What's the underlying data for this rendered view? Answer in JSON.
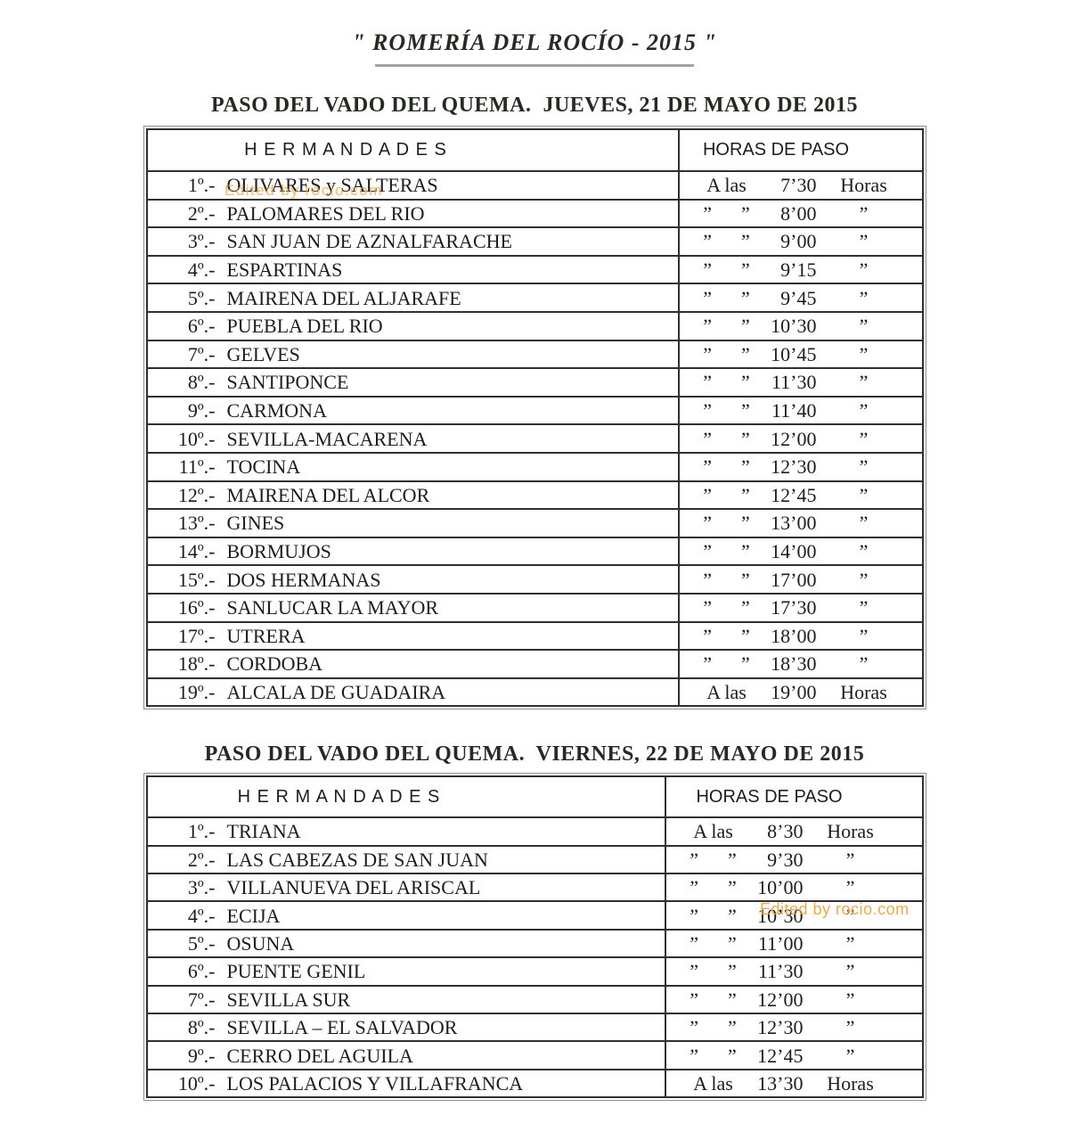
{
  "title": "\" ROMERÍA DEL ROCÍO - 2015 \"",
  "colors": {
    "heading_dark": "#242b22",
    "body_text": "#1d1d1d",
    "table_border": "#2f2f2f",
    "watermark_orange": "#f0a232"
  },
  "watermarks": [
    {
      "text": "Edited by rocio.com"
    },
    {
      "text": "Edited by rocio.com"
    }
  ],
  "tables": [
    {
      "heading": "PASO DEL VADO DEL QUEMA.  JUEVES, 21 DE MAYO DE 2015",
      "col_hermandades": "H E R M A N D A D E S",
      "col_horas": "HORAS DE PASO",
      "rows": [
        {
          "n": "1º.-",
          "name": "OLIVARES y SALTERAS",
          "l": "A las",
          "t": "7’30",
          "r": "Horas"
        },
        {
          "n": "2º.-",
          "name": "PALOMARES DEL RIO",
          "l": "”      ”",
          "t": "8’00",
          "r": "”"
        },
        {
          "n": "3º.-",
          "name": "SAN JUAN DE AZNALFARACHE",
          "l": "”      ”",
          "t": "9’00",
          "r": "”"
        },
        {
          "n": "4º.-",
          "name": "ESPARTINAS",
          "l": "”      ”",
          "t": "9’15",
          "r": "”"
        },
        {
          "n": "5º.-",
          "name": "MAIRENA DEL ALJARAFE",
          "l": "”      ”",
          "t": "9’45",
          "r": "”"
        },
        {
          "n": "6º.-",
          "name": "PUEBLA DEL RIO",
          "l": "”      ”",
          "t": "10’30",
          "r": "”"
        },
        {
          "n": "7º.-",
          "name": "GELVES",
          "l": "”      ”",
          "t": "10’45",
          "r": "”"
        },
        {
          "n": "8º.-",
          "name": "SANTIPONCE",
          "l": "”      ”",
          "t": "11’30",
          "r": "”"
        },
        {
          "n": "9º.-",
          "name": "CARMONA",
          "l": "”      ”",
          "t": "11’40",
          "r": "”"
        },
        {
          "n": "10º.-",
          "name": "SEVILLA-MACARENA",
          "l": "”      ”",
          "t": "12’00",
          "r": "”"
        },
        {
          "n": "11º.-",
          "name": "TOCINA",
          "l": "”      ”",
          "t": "12’30",
          "r": "”"
        },
        {
          "n": "12º.-",
          "name": "MAIRENA DEL ALCOR",
          "l": "”      ”",
          "t": "12’45",
          "r": "”"
        },
        {
          "n": "13º.-",
          "name": "GINES",
          "l": "”      ”",
          "t": "13’00",
          "r": "”"
        },
        {
          "n": "14º.-",
          "name": "BORMUJOS",
          "l": "”      ”",
          "t": "14’00",
          "r": "”"
        },
        {
          "n": "15º.-",
          "name": "DOS HERMANAS",
          "l": "”      ”",
          "t": "17’00",
          "r": "”"
        },
        {
          "n": "16º.-",
          "name": "SANLUCAR LA MAYOR",
          "l": "”      ”",
          "t": "17’30",
          "r": "”"
        },
        {
          "n": "17º.-",
          "name": "UTRERA",
          "l": "”      ”",
          "t": "18’00",
          "r": "”"
        },
        {
          "n": "18º.-",
          "name": "CORDOBA",
          "l": "”      ”",
          "t": "18’30",
          "r": "”"
        },
        {
          "n": "19º.-",
          "name": "ALCALA DE GUADAIRA",
          "l": "A las",
          "t": "19’00",
          "r": "Horas"
        }
      ]
    },
    {
      "heading": "PASO DEL VADO DEL QUEMA.  VIERNES, 22 DE MAYO DE 2015",
      "col_hermandades": "H E R M A N D A D E S",
      "col_horas": "HORAS DE PASO",
      "rows": [
        {
          "n": "1º.-",
          "name": "TRIANA",
          "l": "A las",
          "t": "8’30",
          "r": "Horas"
        },
        {
          "n": "2º.-",
          "name": "LAS CABEZAS DE SAN JUAN",
          "l": "”      ”",
          "t": "9’30",
          "r": "”"
        },
        {
          "n": "3º.-",
          "name": "VILLANUEVA DEL ARISCAL",
          "l": "”      ”",
          "t": "10’00",
          "r": "”"
        },
        {
          "n": "4º.-",
          "name": "ECIJA",
          "l": "”      ”",
          "t": "10’30",
          "r": "”"
        },
        {
          "n": "5º.-",
          "name": "OSUNA",
          "l": "”      ”",
          "t": "11’00",
          "r": "”"
        },
        {
          "n": "6º.-",
          "name": "PUENTE GENIL",
          "l": "”      ”",
          "t": "11’30",
          "r": "”"
        },
        {
          "n": "7º.-",
          "name": "SEVILLA SUR",
          "l": "”      ”",
          "t": "12’00",
          "r": "”"
        },
        {
          "n": "8º.-",
          "name": "SEVILLA – EL SALVADOR",
          "l": "”      ”",
          "t": "12’30",
          "r": "”"
        },
        {
          "n": "9º.-",
          "name": "CERRO DEL AGUILA",
          "l": "”      ”",
          "t": "12’45",
          "r": "”"
        },
        {
          "n": "10º.-",
          "name": "LOS PALACIOS Y VILLAFRANCA",
          "l": "A las",
          "t": "13’30",
          "r": "Horas"
        }
      ]
    }
  ]
}
